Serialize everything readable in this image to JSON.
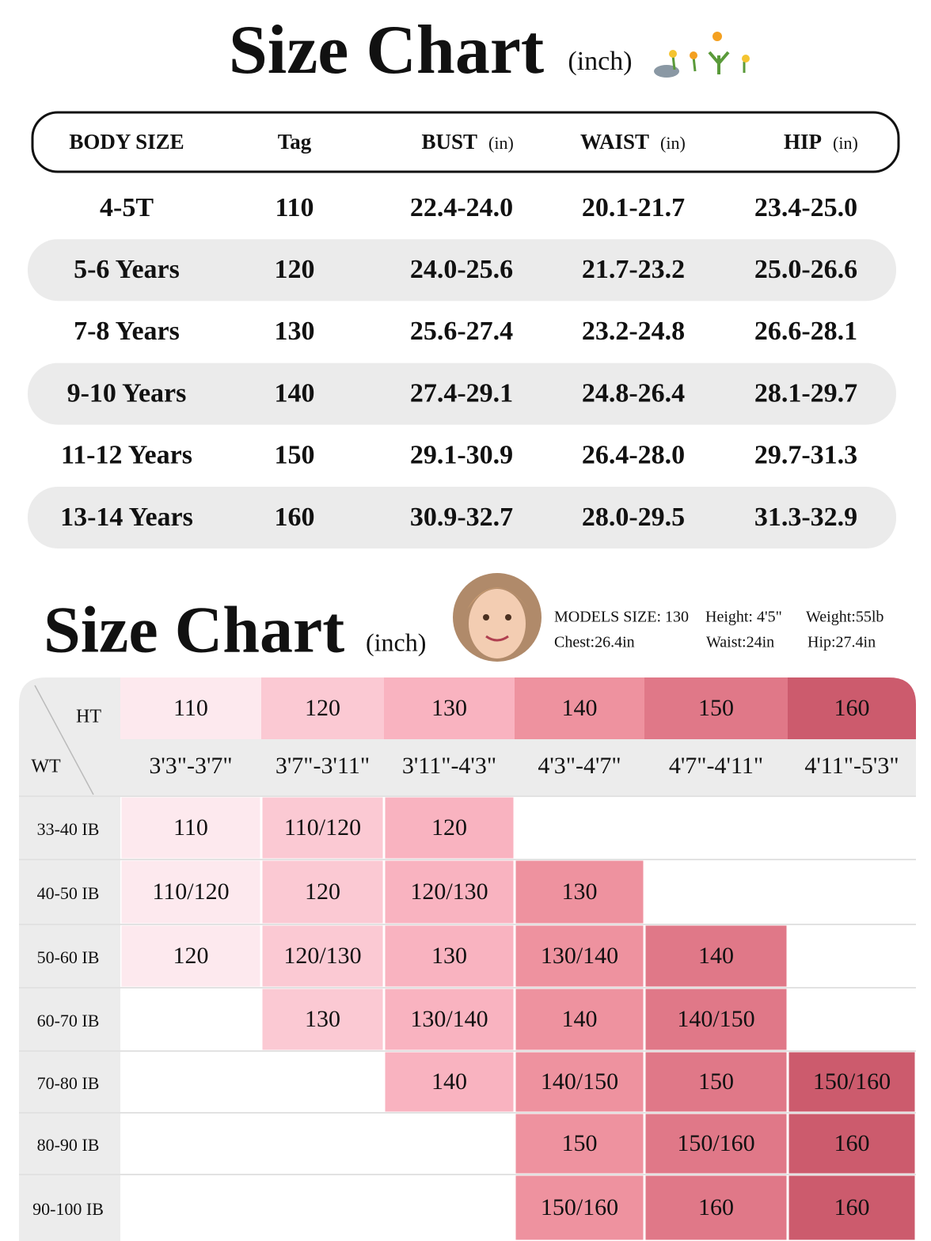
{
  "top": {
    "title": "Size Chart",
    "unit": "(inch)",
    "header": [
      {
        "label": "BODY SIZE"
      },
      {
        "label": "Tag"
      },
      {
        "label": "BUST",
        "unit": "(in)"
      },
      {
        "label": "WAIST",
        "unit": "(in)"
      },
      {
        "label": "HIP",
        "unit": "(in)"
      }
    ],
    "rows": [
      [
        "4-5T",
        "110",
        "22.4-24.0",
        "20.1-21.7",
        "23.4-25.0"
      ],
      [
        "5-6 Years",
        "120",
        "24.0-25.6",
        "21.7-23.2",
        "25.0-26.6"
      ],
      [
        "7-8 Years",
        "130",
        "25.6-27.4",
        "23.2-24.8",
        "26.6-28.1"
      ],
      [
        "9-10 Years",
        "140",
        "27.4-29.1",
        "24.8-26.4",
        "28.1-29.7"
      ],
      [
        "11-12 Years",
        "150",
        "29.1-30.9",
        "26.4-28.0",
        "29.7-31.3"
      ],
      [
        "13-14 Years",
        "160",
        "30.9-32.7",
        "28.0-29.5",
        "31.3-32.9"
      ]
    ]
  },
  "bottom": {
    "title": "Size Chart",
    "unit": "(inch)",
    "model": {
      "size": "MODELS  SIZE: 130",
      "height": "Height: 4'5\"",
      "weight": "Weight:55lb",
      "chest": "Chest:26.4in",
      "waist": "Waist:24in",
      "hip": "Hip:27.4in"
    },
    "corner_ht": "HT",
    "corner_wt": "WT",
    "tags": [
      "110",
      "120",
      "130",
      "140",
      "150",
      "160"
    ],
    "heights": [
      "3'3\"-3'7\"",
      "3'7\"-3'11\"",
      "3'11\"-4'3\"",
      "4'3\"-4'7\"",
      "4'7\"-4'11\"",
      "4'11\"-5'3\""
    ],
    "colors": [
      "#fde9ee",
      "#fbc9d3",
      "#f9b3c0",
      "#ee929f",
      "#e07888",
      "#cc5b6d"
    ],
    "rows": [
      {
        "label": "33-40 IB",
        "cells": [
          "110",
          "110/120",
          "120",
          null,
          null,
          null
        ]
      },
      {
        "label": "40-50 IB",
        "cells": [
          "110/120",
          "120",
          "120/130",
          "130",
          null,
          null
        ]
      },
      {
        "label": "50-60 IB",
        "cells": [
          "120",
          "120/130",
          "130",
          "130/140",
          "140",
          null
        ]
      },
      {
        "label": "60-70 IB",
        "cells": [
          null,
          "130",
          "130/140",
          "140",
          "140/150",
          null
        ]
      },
      {
        "label": "70-80 IB",
        "cells": [
          null,
          null,
          "140",
          "140/150",
          "150",
          "150/160"
        ]
      },
      {
        "label": "80-90 IB",
        "cells": [
          null,
          null,
          null,
          "150",
          "150/160",
          "160"
        ]
      },
      {
        "label": "90-100 IB",
        "cells": [
          null,
          null,
          null,
          "150/160",
          "160",
          "160"
        ]
      }
    ]
  }
}
